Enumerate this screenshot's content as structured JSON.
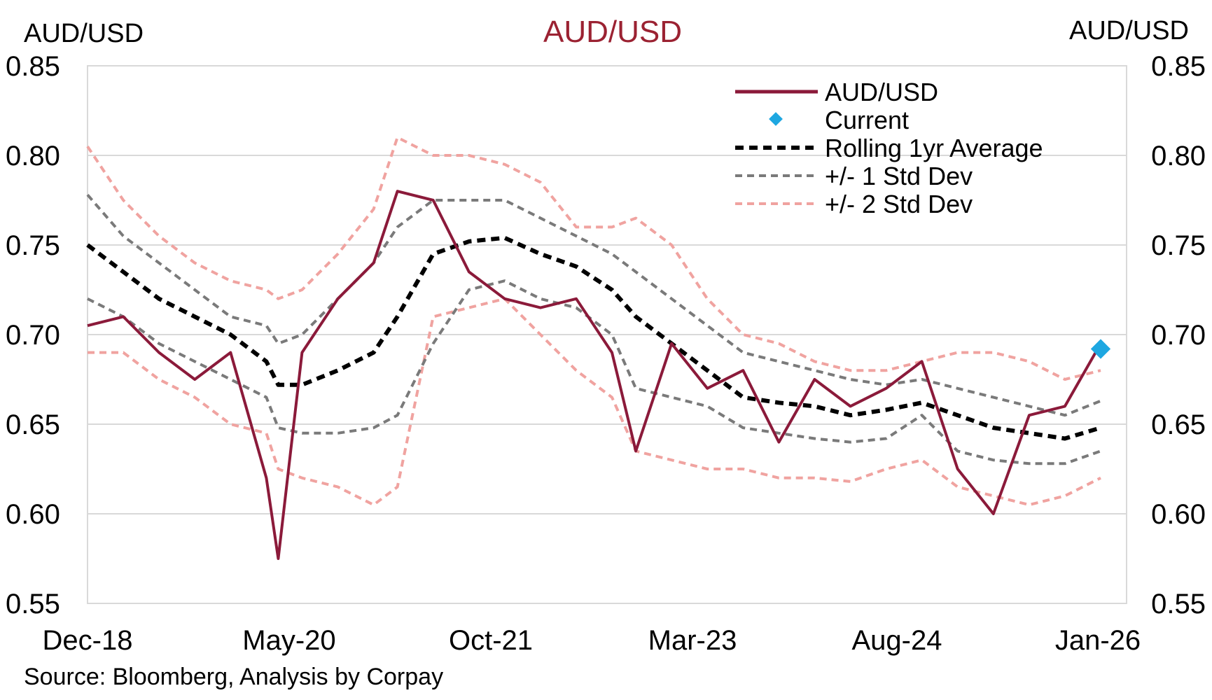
{
  "chart_data": {
    "type": "line",
    "title": "AUD/USD",
    "ylabel_left": "AUD/USD",
    "ylabel_right": "AUD/USD",
    "source": "Source: Bloomberg, Analysis by Corpay",
    "ylim": [
      0.55,
      0.85
    ],
    "yticks": [
      "0.55",
      "0.60",
      "0.65",
      "0.70",
      "0.75",
      "0.80",
      "0.85"
    ],
    "xticks": [
      "Dec-18",
      "May-20",
      "Oct-21",
      "Mar-23",
      "Aug-24",
      "Jan-26"
    ],
    "grid": "horizontal",
    "legend_position": "top-right",
    "colors": {
      "spot": "#8b1a3a",
      "current": "#1ea7e1",
      "avg": "#000000",
      "std1": "#7a7a7a",
      "std2": "#f0a3a0",
      "title": "#9b2232",
      "grid": "#d9d9d9"
    },
    "legend": [
      {
        "key": "spot",
        "label": "AUD/USD"
      },
      {
        "key": "current",
        "label": "Current"
      },
      {
        "key": "avg",
        "label": "Rolling 1yr Average"
      },
      {
        "key": "std1",
        "label": "+/- 1 Std Dev"
      },
      {
        "key": "std2",
        "label": "+/- 2 Std Dev"
      }
    ],
    "x_dates": [
      "2018-12",
      "2019-03",
      "2019-06",
      "2019-09",
      "2019-12",
      "2020-03",
      "2020-04",
      "2020-06",
      "2020-09",
      "2020-12",
      "2021-02",
      "2021-05",
      "2021-08",
      "2021-11",
      "2022-02",
      "2022-05",
      "2022-08",
      "2022-10",
      "2023-01",
      "2023-04",
      "2023-07",
      "2023-10",
      "2024-01",
      "2024-04",
      "2024-07",
      "2024-10",
      "2025-01",
      "2025-04",
      "2025-07",
      "2025-10",
      "2026-01"
    ],
    "series": [
      {
        "name": "AUD/USD",
        "key": "spot",
        "values": [
          0.705,
          0.71,
          0.69,
          0.675,
          0.69,
          0.62,
          0.575,
          0.69,
          0.72,
          0.74,
          0.78,
          0.775,
          0.735,
          0.72,
          0.715,
          0.72,
          0.69,
          0.635,
          0.695,
          0.67,
          0.68,
          0.64,
          0.675,
          0.66,
          0.67,
          0.685,
          0.625,
          0.6,
          0.655,
          0.66,
          0.695
        ]
      },
      {
        "name": "Rolling 1yr Average",
        "key": "avg",
        "values": [
          0.75,
          0.735,
          0.72,
          0.71,
          0.7,
          0.685,
          0.672,
          0.672,
          0.68,
          0.69,
          0.71,
          0.745,
          0.752,
          0.754,
          0.745,
          0.738,
          0.725,
          0.71,
          0.695,
          0.68,
          0.665,
          0.662,
          0.66,
          0.655,
          0.658,
          0.662,
          0.655,
          0.648,
          0.645,
          0.642,
          0.648
        ]
      },
      {
        "name": "+1 Std Dev",
        "key": "std1",
        "values": [
          0.778,
          0.755,
          0.74,
          0.725,
          0.71,
          0.705,
          0.695,
          0.7,
          0.72,
          0.74,
          0.76,
          0.775,
          0.775,
          0.775,
          0.765,
          0.755,
          0.745,
          0.735,
          0.72,
          0.705,
          0.69,
          0.685,
          0.68,
          0.675,
          0.672,
          0.675,
          0.67,
          0.665,
          0.66,
          0.655,
          0.663
        ]
      },
      {
        "name": "-1 Std Dev",
        "key": "std1",
        "values": [
          0.72,
          0.71,
          0.695,
          0.685,
          0.675,
          0.665,
          0.648,
          0.645,
          0.645,
          0.648,
          0.655,
          0.695,
          0.725,
          0.73,
          0.72,
          0.715,
          0.7,
          0.67,
          0.665,
          0.66,
          0.648,
          0.645,
          0.642,
          0.64,
          0.642,
          0.655,
          0.635,
          0.63,
          0.628,
          0.628,
          0.635
        ]
      },
      {
        "name": "+2 Std Dev",
        "key": "std2",
        "values": [
          0.805,
          0.775,
          0.755,
          0.74,
          0.73,
          0.725,
          0.72,
          0.725,
          0.745,
          0.77,
          0.81,
          0.8,
          0.8,
          0.795,
          0.785,
          0.76,
          0.76,
          0.765,
          0.75,
          0.72,
          0.7,
          0.695,
          0.685,
          0.68,
          0.68,
          0.685,
          0.69,
          0.69,
          0.685,
          0.675,
          0.68
        ]
      },
      {
        "name": "-2 Std Dev",
        "key": "std2",
        "values": [
          0.69,
          0.69,
          0.675,
          0.665,
          0.65,
          0.645,
          0.625,
          0.62,
          0.615,
          0.605,
          0.615,
          0.71,
          0.715,
          0.72,
          0.7,
          0.68,
          0.665,
          0.635,
          0.63,
          0.625,
          0.625,
          0.62,
          0.62,
          0.618,
          0.625,
          0.63,
          0.615,
          0.61,
          0.605,
          0.61,
          0.62
        ]
      }
    ],
    "current": {
      "date": "2026-01",
      "value": 0.692
    }
  }
}
